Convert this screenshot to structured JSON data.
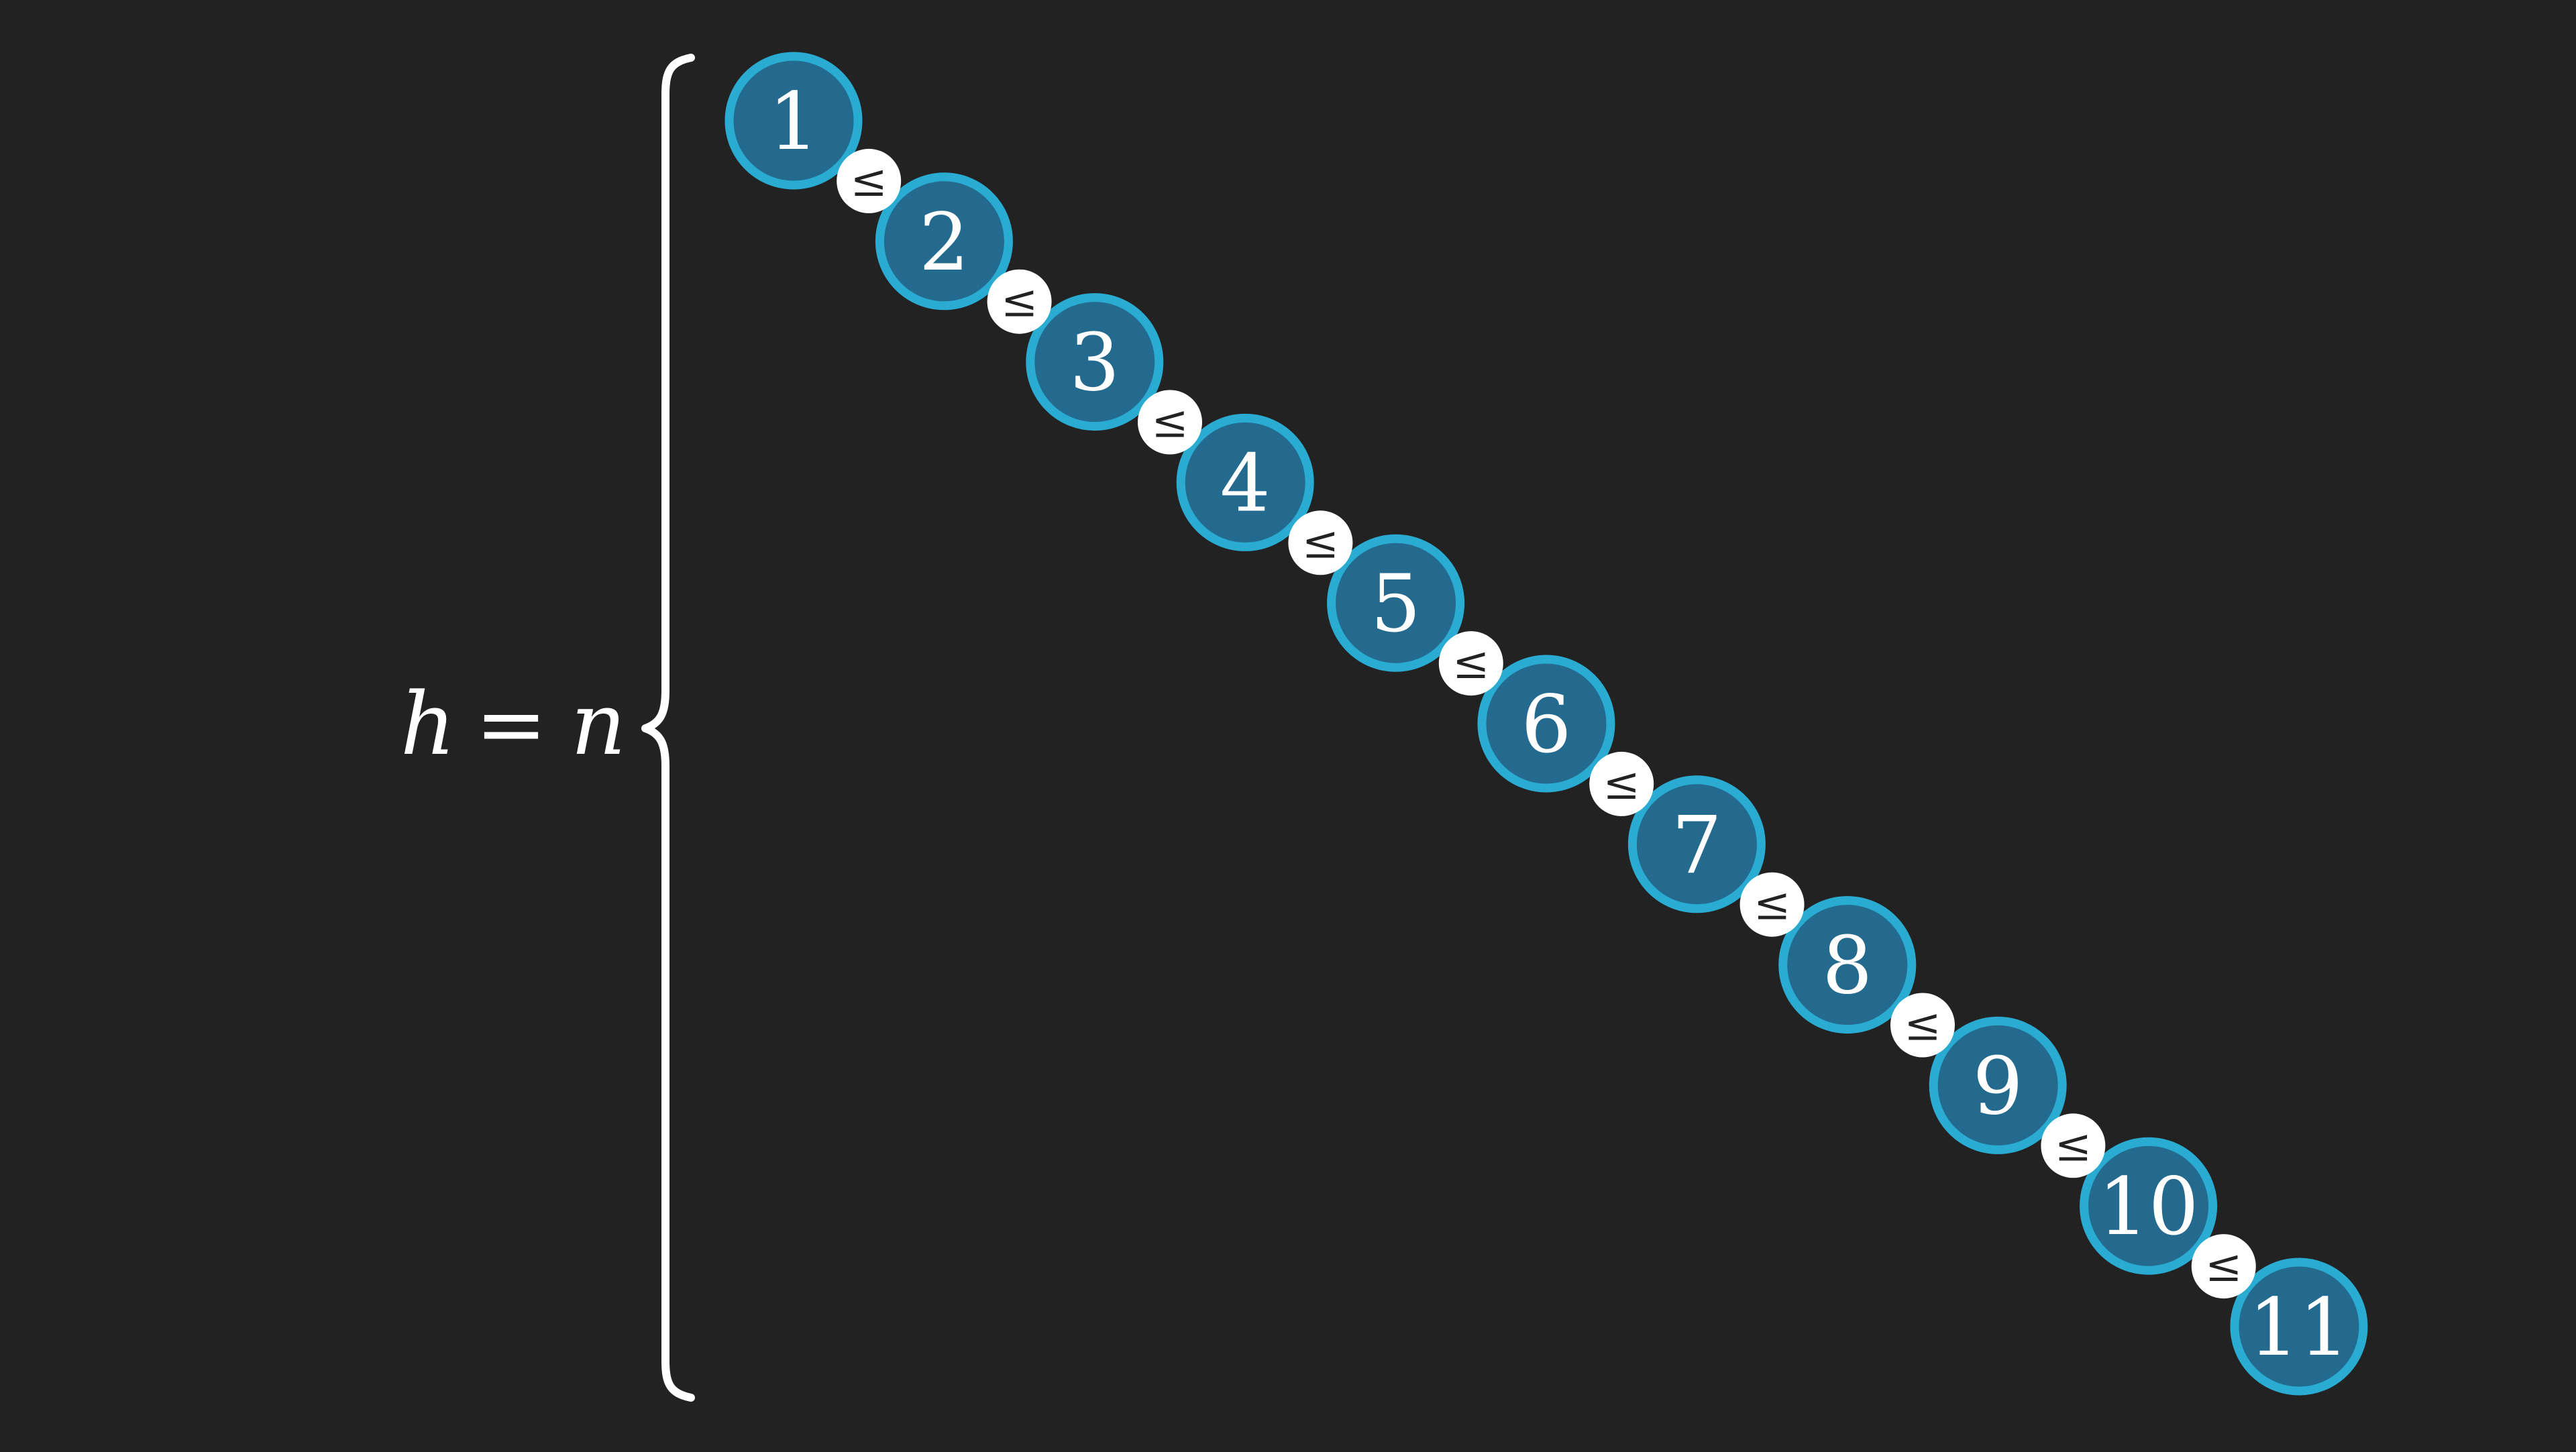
{
  "height_label": "h = n",
  "height_label_parts": {
    "lhs": "h",
    "op": "=",
    "rhs": "n"
  },
  "nodes": [
    "1",
    "2",
    "3",
    "4",
    "5",
    "6",
    "7",
    "8",
    "9",
    "10",
    "11"
  ],
  "relation_symbol": "≤",
  "colors": {
    "background": "#222222",
    "node_fill": "#236a8e",
    "node_stroke": "#29abd2",
    "relation_fill": "#ffffff",
    "relation_text": "#222222",
    "text": "#ffffff",
    "brace": "#ffffff"
  }
}
